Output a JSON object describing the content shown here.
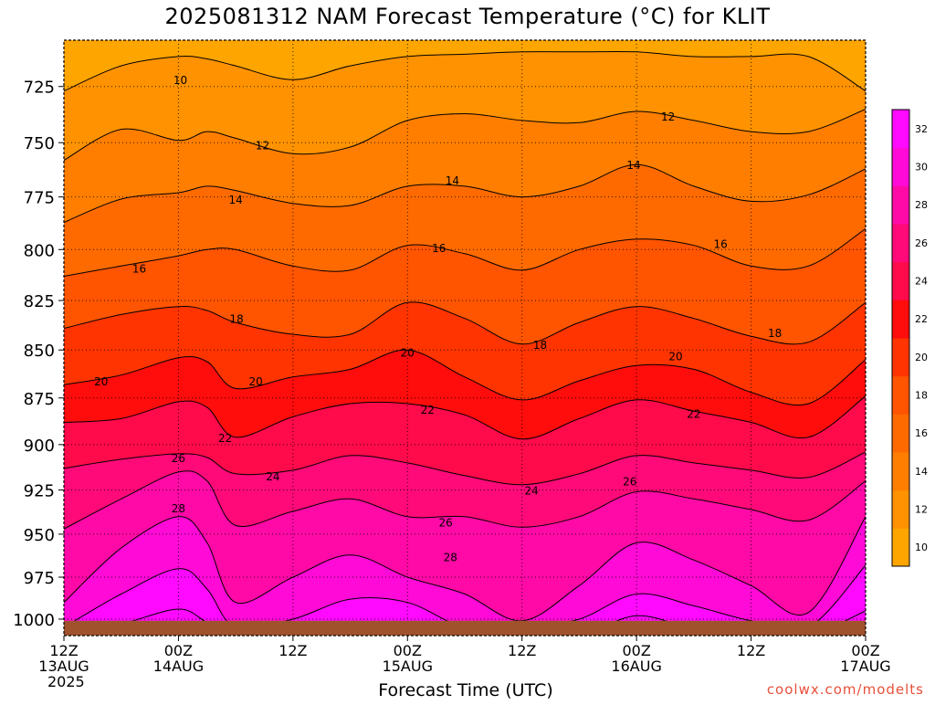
{
  "title": "2025081312 NAM Forecast Temperature (°C) for KLIT",
  "xlabel": "Forecast Time (UTC)",
  "credit": "coolwx.com/modelts",
  "chart_data": {
    "type": "contourf",
    "title": "2025081312 NAM Forecast Temperature (°C) for KLIT",
    "xlabel": "Forecast Time (UTC)",
    "ylabel": "",
    "x_ticks": [
      {
        "hour": 0,
        "labels": [
          "12Z",
          "13AUG",
          "2025"
        ]
      },
      {
        "hour": 12,
        "labels": [
          "00Z",
          "14AUG"
        ]
      },
      {
        "hour": 24,
        "labels": [
          "12Z"
        ]
      },
      {
        "hour": 36,
        "labels": [
          "00Z",
          "15AUG"
        ]
      },
      {
        "hour": 48,
        "labels": [
          "12Z"
        ]
      },
      {
        "hour": 60,
        "labels": [
          "00Z",
          "16AUG"
        ]
      },
      {
        "hour": 72,
        "labels": [
          "12Z"
        ]
      },
      {
        "hour": 84,
        "labels": [
          "00Z",
          "17AUG"
        ]
      }
    ],
    "xlim": [
      0,
      84
    ],
    "y_ticks": [
      725,
      750,
      775,
      800,
      825,
      850,
      875,
      900,
      925,
      950,
      975,
      1000
    ],
    "ylim": [
      1010,
      705
    ],
    "yscale": "log-pressure",
    "grid": true,
    "surface_pressure_hPa": 1001,
    "levels": [
      10,
      12,
      14,
      16,
      18,
      20,
      22,
      24,
      26,
      28,
      30,
      32
    ],
    "colorbar": {
      "placement": "right",
      "ticks": [
        10,
        12,
        14,
        16,
        18,
        20,
        22,
        24,
        26,
        28,
        30,
        32
      ],
      "colors": [
        "#ffa500",
        "#ff9200",
        "#ff7e00",
        "#ff6a00",
        "#ff5400",
        "#ff3400",
        "#ff0c0c",
        "#ff0a4a",
        "#ff0a78",
        "#ff0aa6",
        "#ff0ad6",
        "#ff0aff"
      ]
    },
    "contour_labels": [
      {
        "value": "10",
        "x_hour": 12.2,
        "y_hPa": 722
      },
      {
        "value": "12",
        "x_hour": 20.8,
        "y_hPa": 751
      },
      {
        "value": "12",
        "x_hour": 63.3,
        "y_hPa": 738
      },
      {
        "value": "14",
        "x_hour": 18.0,
        "y_hPa": 776
      },
      {
        "value": "14",
        "x_hour": 40.7,
        "y_hPa": 767
      },
      {
        "value": "14",
        "x_hour": 59.7,
        "y_hPa": 760
      },
      {
        "value": "16",
        "x_hour": 7.9,
        "y_hPa": 809
      },
      {
        "value": "16",
        "x_hour": 39.3,
        "y_hPa": 799
      },
      {
        "value": "16",
        "x_hour": 68.8,
        "y_hPa": 797
      },
      {
        "value": "18",
        "x_hour": 18.1,
        "y_hPa": 834
      },
      {
        "value": "18",
        "x_hour": 49.9,
        "y_hPa": 847
      },
      {
        "value": "18",
        "x_hour": 74.5,
        "y_hPa": 841
      },
      {
        "value": "20",
        "x_hour": 3.9,
        "y_hPa": 866
      },
      {
        "value": "20",
        "x_hour": 20.1,
        "y_hPa": 866
      },
      {
        "value": "20",
        "x_hour": 36.0,
        "y_hPa": 851
      },
      {
        "value": "20",
        "x_hour": 64.1,
        "y_hPa": 853
      },
      {
        "value": "22",
        "x_hour": 16.9,
        "y_hPa": 896
      },
      {
        "value": "22",
        "x_hour": 38.1,
        "y_hPa": 881
      },
      {
        "value": "22",
        "x_hour": 66.0,
        "y_hPa": 883
      },
      {
        "value": "24",
        "x_hour": 21.9,
        "y_hPa": 917
      },
      {
        "value": "24",
        "x_hour": 49.0,
        "y_hPa": 925
      },
      {
        "value": "26",
        "x_hour": 12.0,
        "y_hPa": 907
      },
      {
        "value": "26",
        "x_hour": 40.0,
        "y_hPa": 943
      },
      {
        "value": "26",
        "x_hour": 59.3,
        "y_hPa": 920
      },
      {
        "value": "28",
        "x_hour": 12.0,
        "y_hPa": 935
      },
      {
        "value": "28",
        "x_hour": 40.5,
        "y_hPa": 963
      }
    ],
    "isotherms_hPa_at_x": {
      "x_hours": [
        0,
        6,
        12,
        15,
        18,
        24,
        30,
        36,
        42,
        48,
        54,
        60,
        66,
        72,
        78,
        84
      ],
      "t10": [
        727,
        716,
        712,
        713,
        716,
        722,
        716,
        712,
        711,
        710,
        710,
        710,
        712,
        712,
        712,
        727
      ],
      "t12": [
        758,
        744,
        749,
        745,
        748,
        755,
        752,
        740,
        737,
        740,
        741,
        736,
        740,
        745,
        745,
        735
      ],
      "t14": [
        787,
        776,
        773,
        770,
        772,
        778,
        779,
        770,
        770,
        775,
        770,
        760,
        770,
        777,
        774,
        762
      ],
      "t16": [
        813,
        808,
        803,
        800,
        800,
        808,
        810,
        798,
        802,
        810,
        800,
        795,
        798,
        808,
        808,
        790
      ],
      "t18": [
        839,
        832,
        828,
        830,
        836,
        842,
        842,
        826,
        834,
        847,
        836,
        828,
        834,
        843,
        846,
        826
      ],
      "t20": [
        868,
        863,
        854,
        856,
        870,
        864,
        860,
        850,
        864,
        876,
        866,
        858,
        860,
        872,
        878,
        855
      ],
      "t22": [
        888,
        886,
        877,
        880,
        896,
        885,
        878,
        878,
        884,
        897,
        886,
        876,
        882,
        888,
        896,
        874
      ],
      "t24": [
        913,
        908,
        905,
        907,
        916,
        914,
        906,
        910,
        917,
        922,
        916,
        906,
        910,
        914,
        918,
        904
      ],
      "t26": [
        947,
        930,
        915,
        920,
        945,
        937,
        930,
        940,
        940,
        946,
        940,
        926,
        930,
        936,
        942,
        920
      ],
      "t28": [
        990,
        958,
        940,
        955,
        990,
        975,
        962,
        975,
        985,
        1001,
        980,
        955,
        965,
        980,
        996,
        940
      ],
      "t30": [
        1005,
        985,
        970,
        982,
        1005,
        1000,
        988,
        990,
        1005,
        1005,
        1000,
        985,
        992,
        1001,
        1005,
        968
      ],
      "t32": [
        1010,
        1003,
        994,
        1002,
        1010,
        1010,
        1003,
        1002,
        1010,
        1010,
        1010,
        998,
        1006,
        1010,
        1010,
        995
      ]
    }
  }
}
